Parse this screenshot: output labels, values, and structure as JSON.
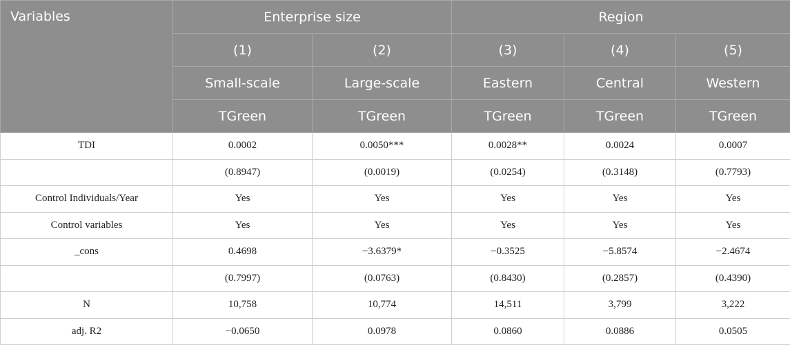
{
  "table": {
    "header": {
      "variables": "Variables",
      "groups": [
        "Enterprise size",
        "Region"
      ],
      "numbers": [
        "(1)",
        "(2)",
        "(3)",
        "(4)",
        "(5)"
      ],
      "names": [
        "Small-scale",
        "Large-scale",
        "Eastern",
        "Central",
        "Western"
      ],
      "dependent": [
        "TGreen",
        "TGreen",
        "TGreen",
        "TGreen",
        "TGreen"
      ]
    },
    "rows": [
      [
        "TDI",
        "0.0002",
        "0.0050***",
        "0.0028**",
        "0.0024",
        "0.0007"
      ],
      [
        null,
        "(0.8947)",
        "(0.0019)",
        "(0.0254)",
        "(0.3148)",
        "(0.7793)"
      ],
      [
        "Control Individuals/Year",
        "Yes",
        "Yes",
        "Yes",
        "Yes",
        "Yes"
      ],
      [
        "Control variables",
        "Yes",
        "Yes",
        "Yes",
        "Yes",
        "Yes"
      ],
      [
        "_cons",
        "0.4698",
        "−3.6379*",
        "−0.3525",
        "−5.8574",
        "−2.4674"
      ],
      [
        null,
        "(0.7997)",
        "(0.0763)",
        "(0.8430)",
        "(0.2857)",
        "(0.4390)"
      ],
      [
        "N",
        "10,758",
        "10,774",
        "14,511",
        "3,799",
        "3,222"
      ],
      [
        "adj. R2",
        "−0.0650",
        "0.0978",
        "0.0860",
        "0.0886",
        "0.0505"
      ]
    ]
  }
}
